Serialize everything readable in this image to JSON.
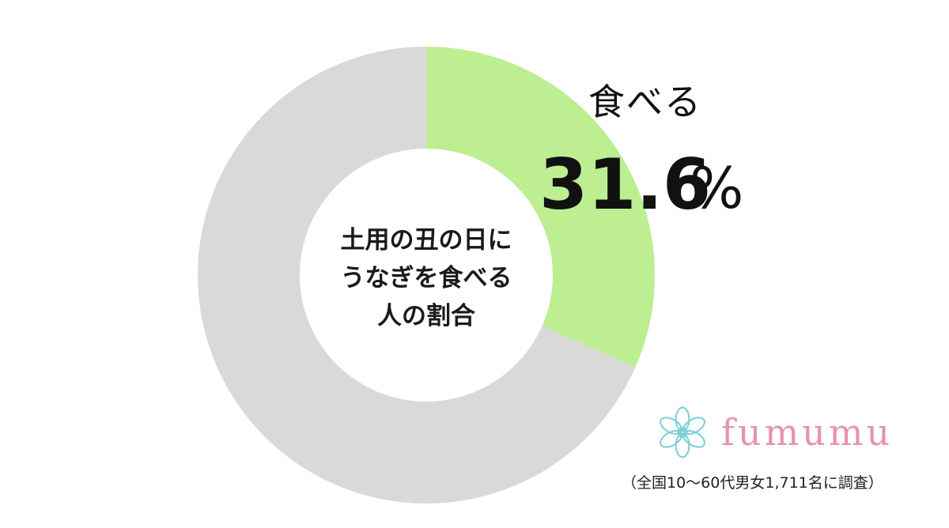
{
  "chart_data": {
    "type": "pie",
    "title": "土用の丑の日にうなぎを食べる人の割合",
    "slices": [
      {
        "name": "食べる",
        "value": 31.6,
        "color": "#bdee92",
        "label": "食べる"
      },
      {
        "name": "",
        "value": 68.4,
        "color": "#d9d9d9"
      }
    ],
    "unit": "%",
    "donut": true
  },
  "center_title_lines": [
    "土用の丑の日に",
    "うなぎを食べる",
    "人の割合"
  ],
  "highlight": {
    "label": "食べる",
    "value_text": "31.6",
    "unit_text": "%"
  },
  "logo": {
    "text": "fumumu",
    "icon": "snowflake-flower-icon",
    "color": "#e892ae",
    "icon_color": "#7ccfd6"
  },
  "footnote": "（全国10～60代男女1,711名に調査）"
}
